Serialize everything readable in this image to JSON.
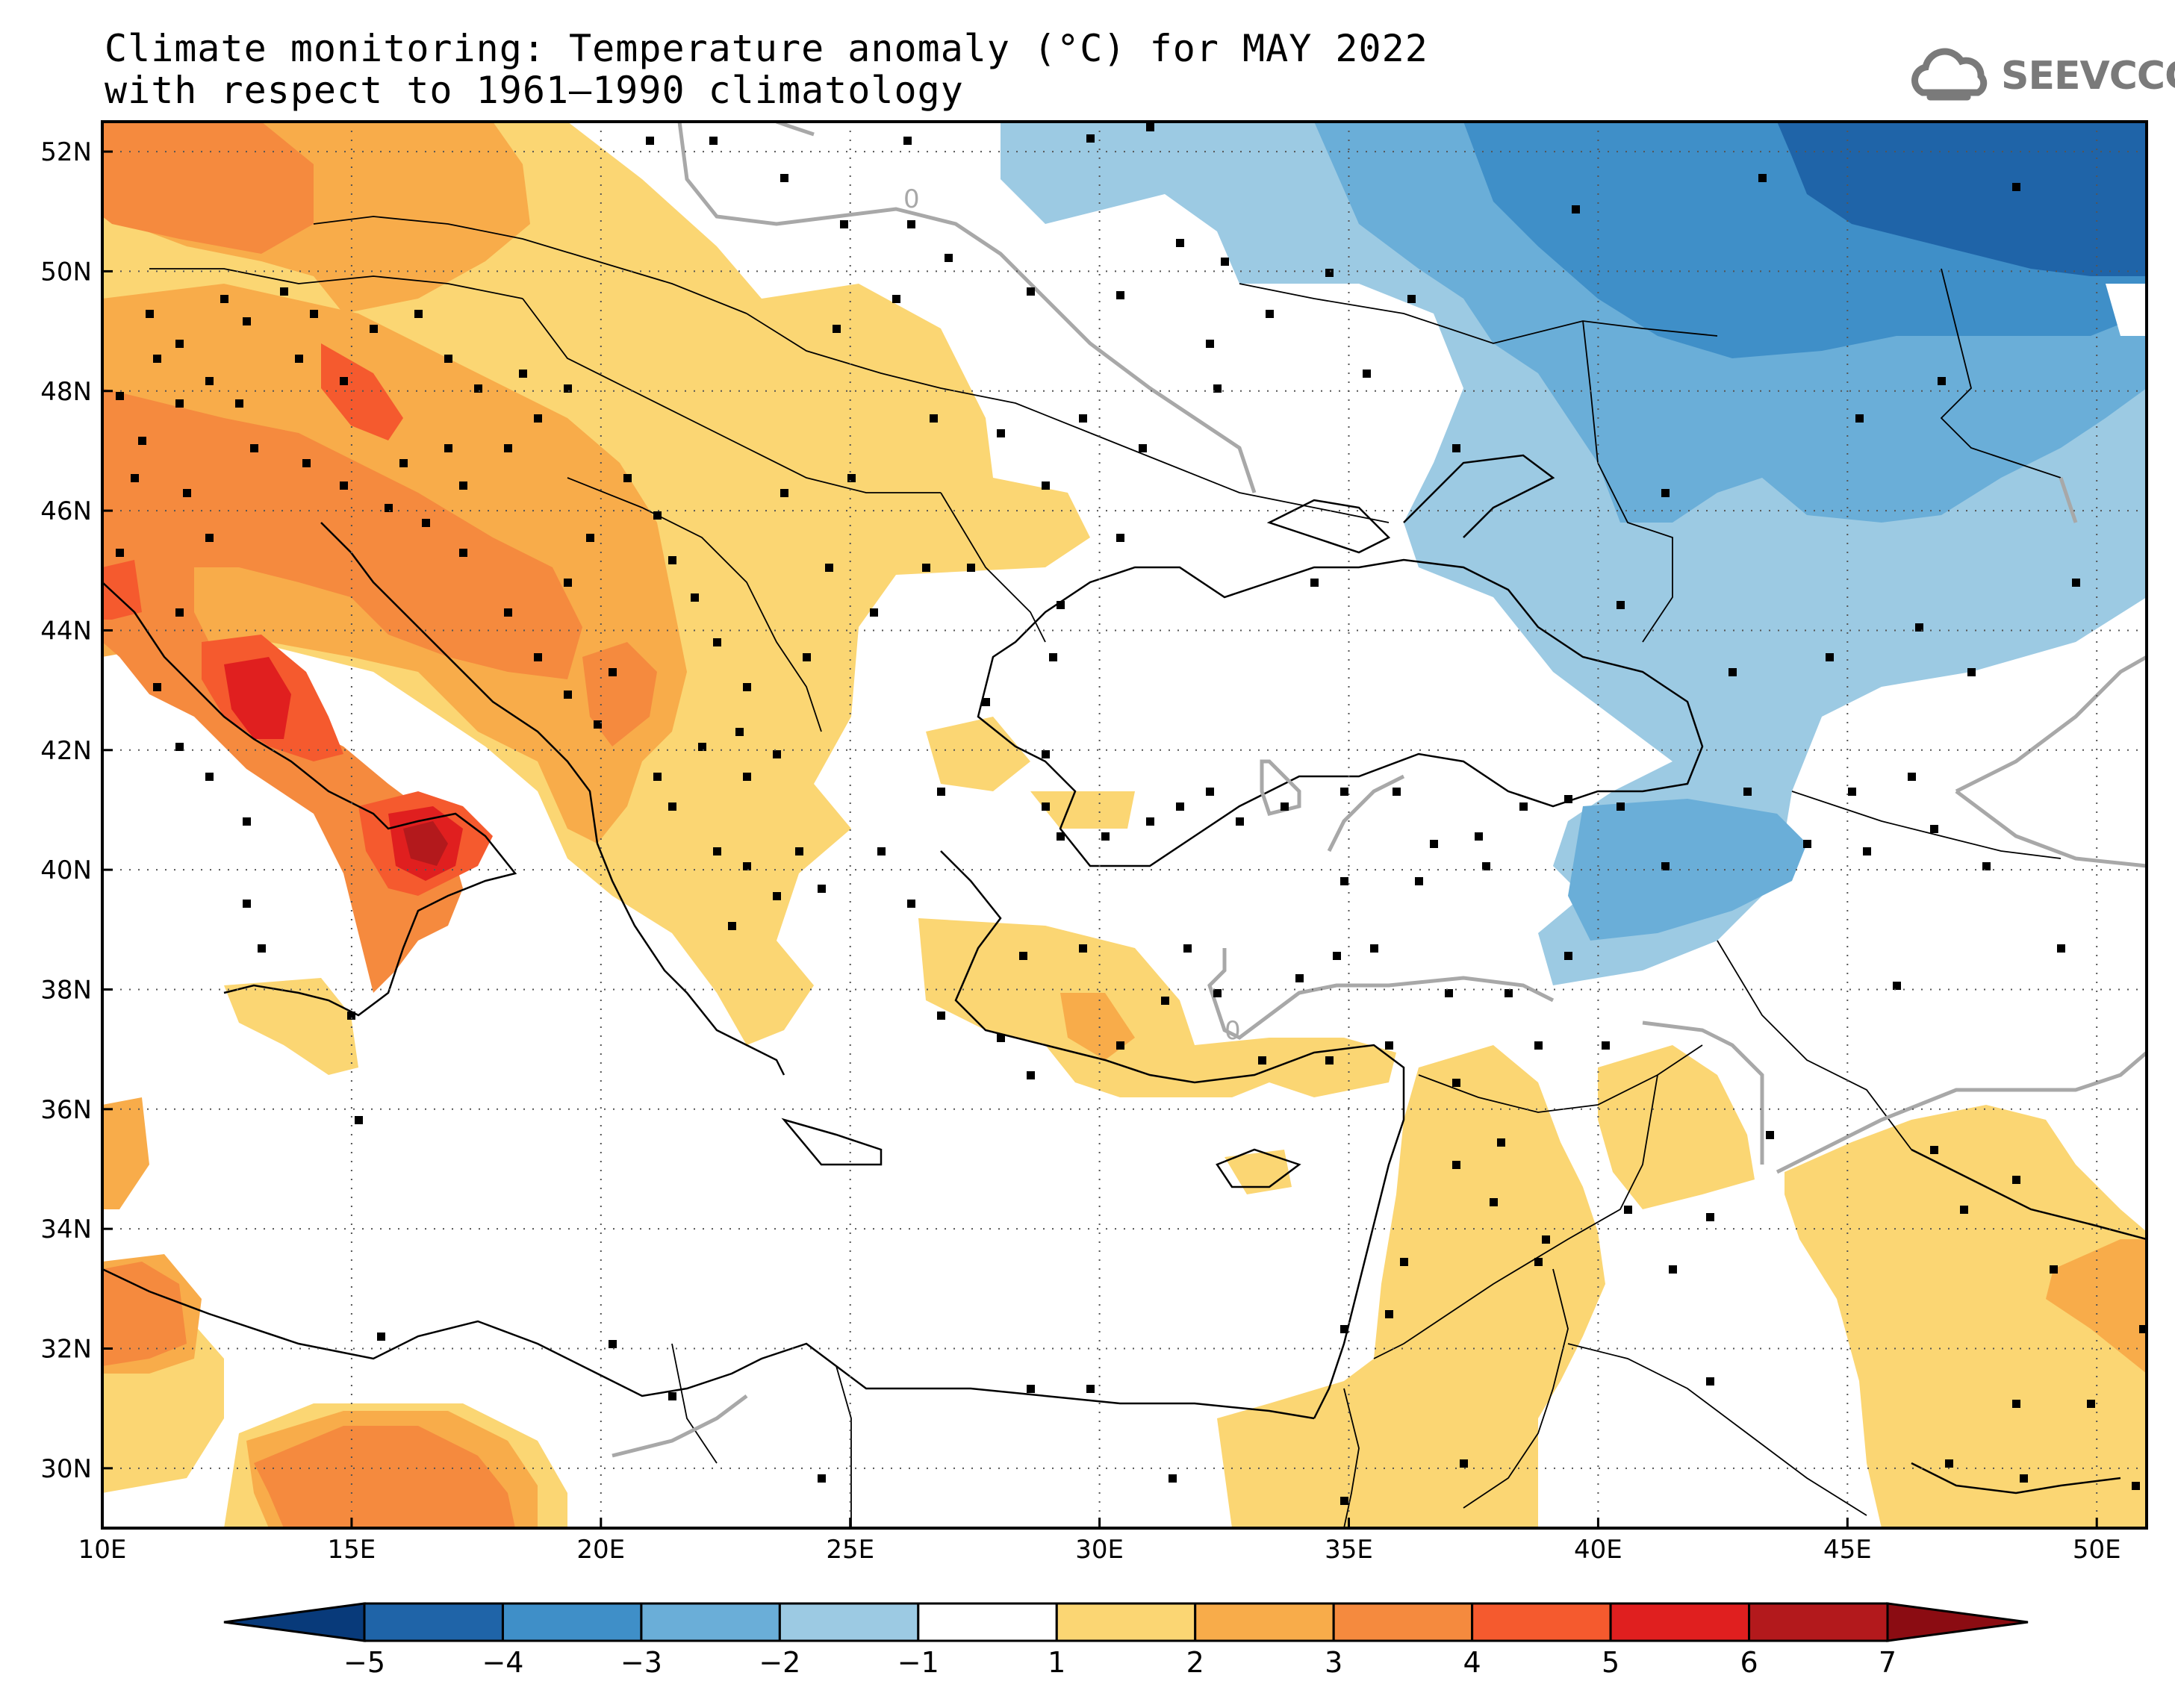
{
  "title_line1": "Climate monitoring: Temperature anomaly (°C) for MAY 2022",
  "title_line2": "with respect to 1961–1990 climatology",
  "logo_text": "SEEVCCC",
  "map": {
    "lon_range": [
      10,
      51
    ],
    "lat_range": [
      29,
      52.5
    ],
    "x_ticks": [
      {
        "lon": 10,
        "label": "10E"
      },
      {
        "lon": 15,
        "label": "15E"
      },
      {
        "lon": 20,
        "label": "20E"
      },
      {
        "lon": 25,
        "label": "25E"
      },
      {
        "lon": 30,
        "label": "30E"
      },
      {
        "lon": 35,
        "label": "35E"
      },
      {
        "lon": 40,
        "label": "40E"
      },
      {
        "lon": 45,
        "label": "45E"
      },
      {
        "lon": 50,
        "label": "50E"
      }
    ],
    "y_ticks": [
      {
        "lat": 52,
        "label": "52N"
      },
      {
        "lat": 50,
        "label": "50N"
      },
      {
        "lat": 48,
        "label": "48N"
      },
      {
        "lat": 46,
        "label": "46N"
      },
      {
        "lat": 44,
        "label": "44N"
      },
      {
        "lat": 42,
        "label": "42N"
      },
      {
        "lat": 40,
        "label": "40N"
      },
      {
        "lat": 38,
        "label": "38N"
      },
      {
        "lat": 36,
        "label": "36N"
      },
      {
        "lat": 34,
        "label": "34N"
      },
      {
        "lat": 32,
        "label": "32N"
      },
      {
        "lat": 30,
        "label": "30N"
      }
    ],
    "zero_contour_label": "0"
  },
  "colorbar": {
    "labels": [
      "−5",
      "−4",
      "−3",
      "−2",
      "−1",
      "1",
      "2",
      "3",
      "4",
      "5",
      "6",
      "7"
    ],
    "colors": [
      "#083a7a",
      "#1f64a8",
      "#3f8fc8",
      "#6aaed8",
      "#9ccae3",
      "#ffffff",
      "#fbd673",
      "#f8ac4a",
      "#f58a3e",
      "#f55a2e",
      "#e01f1f",
      "#b3191c",
      "#8b0c12"
    ],
    "colors_meaning": "under -5, -5..-4, -4..-3, -3..-2, -2..-1, -1..1, 1..2, 2..3, 3..4, 4..5, 5..6, 6..7, over 7"
  }
}
